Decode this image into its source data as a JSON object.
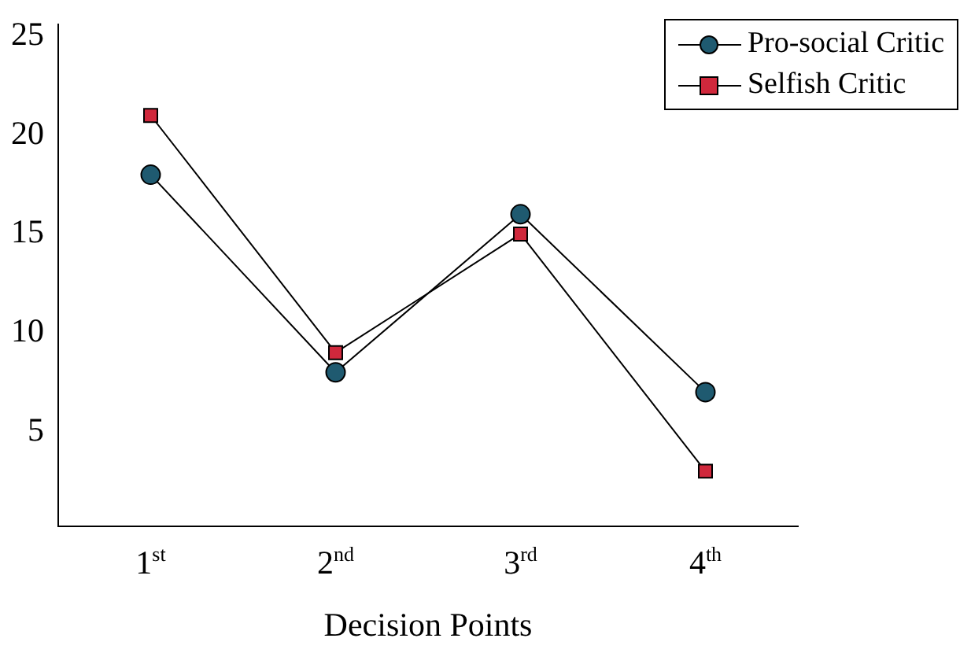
{
  "chart_data": {
    "type": "line",
    "xlabel": "Decision Points",
    "categories": [
      "1$^{st}$",
      "2$^{nd}$",
      "3$^{rd}$",
      "4$^{th}$"
    ],
    "series": [
      {
        "name": "Pro-social Critic",
        "color": "#1f5a70",
        "marker": "circle",
        "values": [
          18,
          8,
          16,
          7
        ]
      },
      {
        "name": "Selfish Critic",
        "color": "#d0283c",
        "marker": "square",
        "values": [
          21,
          9,
          15,
          3
        ]
      }
    ],
    "ylim": [
      0.2,
      25.6
    ],
    "yticks": [
      5,
      10,
      15,
      20,
      25
    ],
    "grid": false,
    "legend": "top right",
    "line_style": "solid"
  }
}
